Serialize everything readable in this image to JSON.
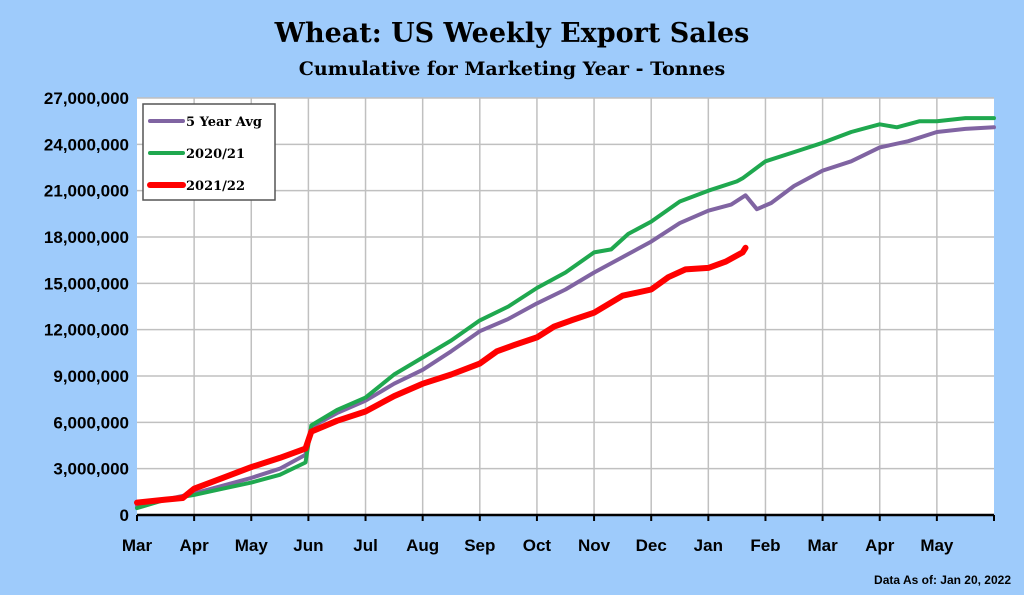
{
  "chart_data": {
    "type": "line",
    "title": "Wheat: US Weekly Export Sales",
    "subtitle": "Cumulative for Marketing Year - Tonnes",
    "xlabel": "",
    "ylabel": "",
    "x_units": "months since start of March (marketing year)",
    "xlim": [
      0,
      15
    ],
    "ylim": [
      0,
      27000000
    ],
    "y_ticks": [
      0,
      3000000,
      6000000,
      9000000,
      12000000,
      15000000,
      18000000,
      21000000,
      24000000,
      27000000
    ],
    "y_tick_labels": [
      "0",
      "3,000,000",
      "6,000,000",
      "9,000,000",
      "12,000,000",
      "15,000,000",
      "18,000,000",
      "21,000,000",
      "24,000,000",
      "27,000,000"
    ],
    "x_tick_labels": [
      "Mar",
      "Apr",
      "May",
      "Jun",
      "Jul",
      "Aug",
      "Sep",
      "Oct",
      "Nov",
      "Dec",
      "Jan",
      "Feb",
      "Mar",
      "Apr",
      "May"
    ],
    "grid": true,
    "legend_position": "top-left",
    "series": [
      {
        "name": "5 Year Avg",
        "color": "#8064a2",
        "x": [
          0,
          0.5,
          1,
          1.5,
          2,
          2.5,
          2.95,
          3.05,
          3.5,
          4,
          4.5,
          5,
          5.5,
          6,
          6.5,
          7,
          7.5,
          8,
          8.5,
          9,
          9.5,
          10,
          10.4,
          10.65,
          10.85,
          11.1,
          11.5,
          12,
          12.5,
          13,
          13.5,
          14,
          14.5,
          15
        ],
        "y": [
          600000,
          1000000,
          1400000,
          1900000,
          2400000,
          3000000,
          3900000,
          5700000,
          6600000,
          7400000,
          8500000,
          9400000,
          10600000,
          11900000,
          12700000,
          13700000,
          14600000,
          15700000,
          16700000,
          17700000,
          18900000,
          19700000,
          20100000,
          20700000,
          19800000,
          20200000,
          21300000,
          22300000,
          22900000,
          23800000,
          24200000,
          24800000,
          25000000,
          25100000
        ]
      },
      {
        "name": "2020/21",
        "color": "#1fa84f",
        "x": [
          0,
          0.5,
          1,
          1.5,
          2,
          2.5,
          2.95,
          3.05,
          3.5,
          4,
          4.5,
          5,
          5.5,
          6,
          6.5,
          7,
          7.5,
          8,
          8.3,
          8.6,
          9,
          9.5,
          10,
          10.5,
          10.6,
          11,
          11.5,
          12,
          12.5,
          13,
          13.3,
          13.7,
          14,
          14.5,
          15
        ],
        "y": [
          450000,
          1000000,
          1300000,
          1700000,
          2100000,
          2600000,
          3400000,
          5800000,
          6800000,
          7600000,
          9100000,
          10200000,
          11300000,
          12600000,
          13500000,
          14700000,
          15700000,
          17000000,
          17200000,
          18200000,
          19000000,
          20300000,
          21000000,
          21600000,
          21800000,
          22900000,
          23500000,
          24100000,
          24800000,
          25300000,
          25100000,
          25500000,
          25500000,
          25700000,
          25700000
        ]
      },
      {
        "name": "2021/22",
        "color": "#ff0000",
        "x": [
          0,
          0.5,
          0.8,
          1,
          1.5,
          2,
          2.5,
          2.95,
          3.05,
          3.5,
          4,
          4.5,
          5,
          5.5,
          6,
          6.3,
          6.6,
          7,
          7.3,
          7.6,
          8,
          8.5,
          9,
          9.3,
          9.6,
          10,
          10.3,
          10.6,
          10.65
        ],
        "y": [
          800000,
          1000000,
          1100000,
          1700000,
          2400000,
          3100000,
          3700000,
          4300000,
          5400000,
          6100000,
          6700000,
          7700000,
          8500000,
          9100000,
          9800000,
          10600000,
          11000000,
          11500000,
          12200000,
          12600000,
          13100000,
          14200000,
          14600000,
          15400000,
          15900000,
          16000000,
          16400000,
          17000000,
          17300000
        ]
      }
    ],
    "footer": "Data As of: Jan 20, 2022"
  }
}
